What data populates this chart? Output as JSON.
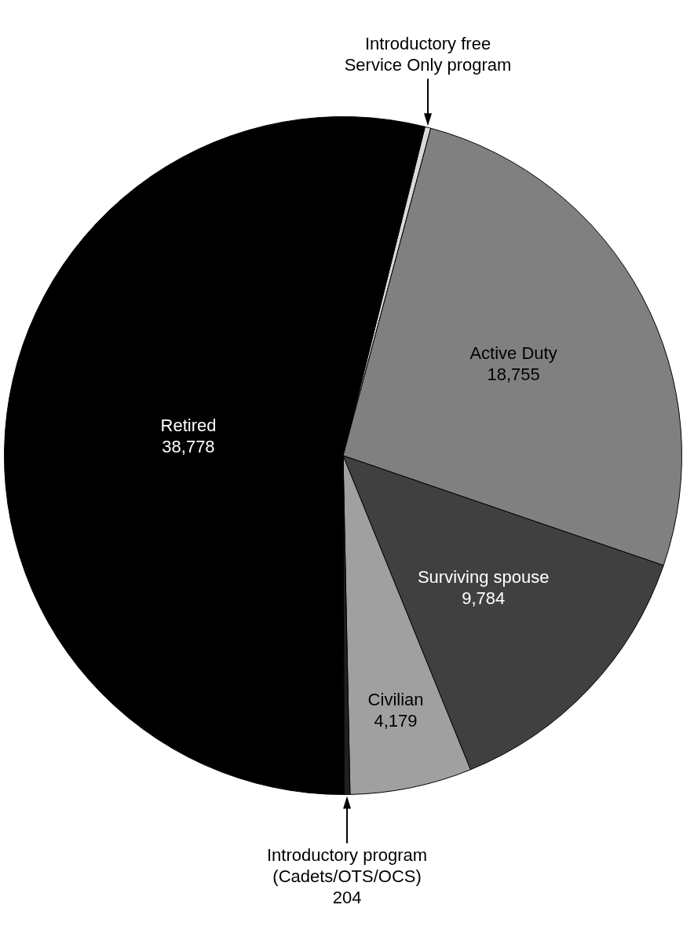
{
  "chart_data": {
    "type": "pie",
    "categories": [
      "Introductory free Service Only program",
      "Active Duty",
      "Surviving spouse",
      "Civilian",
      "Introductory program (Cadets/OTS/OCS)",
      "Retired"
    ],
    "values": [
      200,
      18755,
      9784,
      4179,
      204,
      38778
    ],
    "value_labels": [
      null,
      "18,755",
      "9,784",
      "4,179",
      "204",
      "38,778"
    ],
    "colors": [
      "#d9d9d9",
      "#808080",
      "#404040",
      "#a0a0a0",
      "#202020",
      "#000000"
    ]
  }
}
